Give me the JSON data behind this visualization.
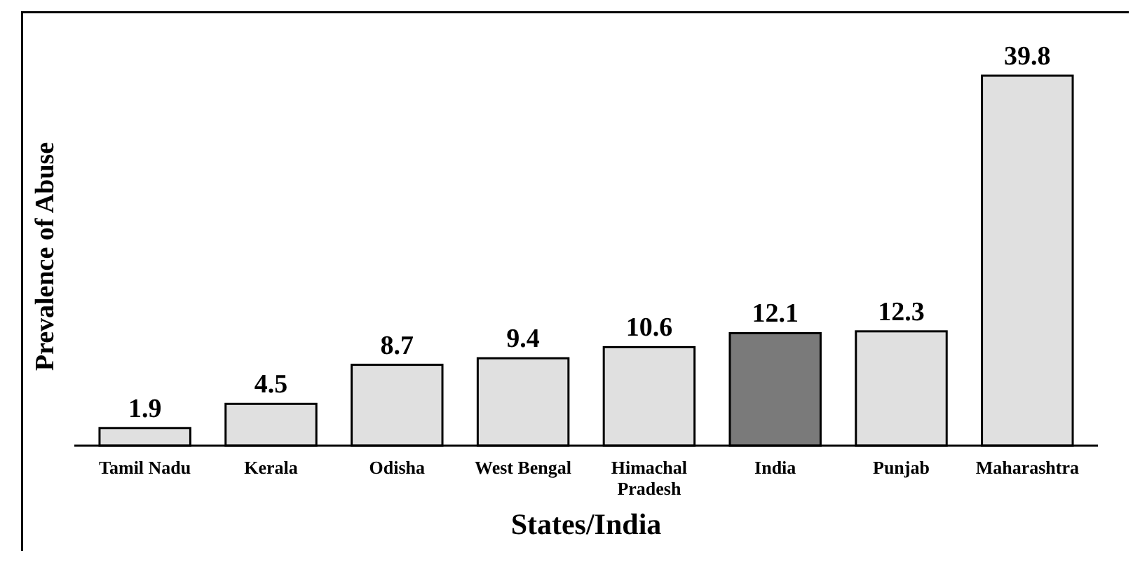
{
  "chart_data": {
    "type": "bar",
    "xlabel": "States/India",
    "ylabel": "Prevalence of Abuse",
    "categories": [
      "Tamil Nadu",
      "Kerala",
      "Odisha",
      "West Bengal",
      "Himachal\nPradesh",
      "India",
      "Punjab",
      "Maharashtra"
    ],
    "values": [
      1.9,
      4.5,
      8.7,
      9.4,
      10.6,
      12.1,
      12.3,
      39.8
    ],
    "colors": [
      "#e0e0e0",
      "#e0e0e0",
      "#e0e0e0",
      "#e0e0e0",
      "#e0e0e0",
      "#7a7a7a",
      "#e0e0e0",
      "#e0e0e0"
    ],
    "data_labels": true
  }
}
